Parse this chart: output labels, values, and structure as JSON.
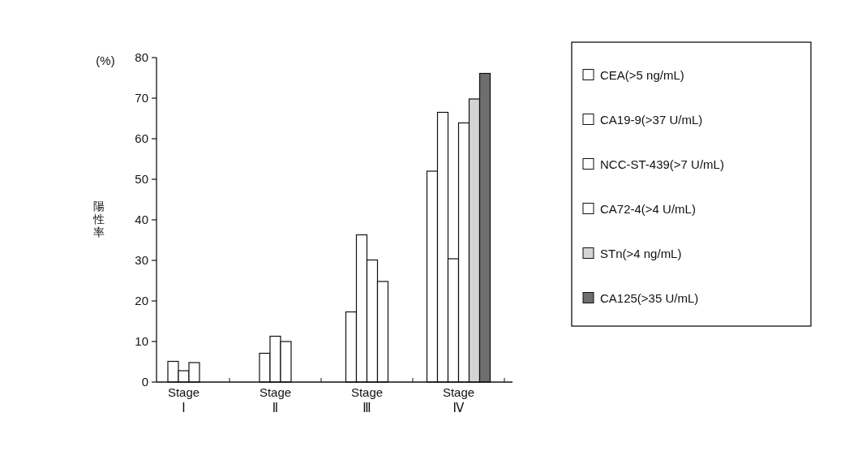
{
  "chart_data": {
    "type": "bar",
    "ylabel": "陽性率",
    "annotations": [
      "(%)"
    ],
    "categories": [
      "Stage\nⅠ",
      "Stage\nⅡ",
      "Stage\nⅢ",
      "Stage\nⅣ"
    ],
    "ylim": [
      0,
      80
    ],
    "yticks": [
      0,
      10,
      20,
      30,
      40,
      50,
      60,
      70,
      80
    ],
    "legend": "right",
    "grid": false,
    "series": [
      {
        "name": "CEA(>5 ng/mL)",
        "color": "#ffffff",
        "values": [
          5.1,
          7.1,
          17.3,
          52
        ]
      },
      {
        "name": "CA19-9(>37 U/mL)",
        "color": "#ffffff",
        "values": [
          2.8,
          11.3,
          36.3,
          66.5
        ]
      },
      {
        "name": "NCC-ST-439(>7 U/mL)",
        "color": "#ffffff",
        "values": [
          4.8,
          10.0,
          30.1,
          30.4
        ]
      },
      {
        "name": "CA72-4(>4 U/mL)",
        "color": "#ffffff",
        "values": [
          null,
          null,
          24.8,
          63.9
        ]
      },
      {
        "name": "STn(>4 ng/mL)",
        "color": "#d4d4d4",
        "values": [
          null,
          null,
          null,
          69.8
        ]
      },
      {
        "name": "CA125(>35 U/mL)",
        "color": "#6e6e6e",
        "values": [
          null,
          null,
          null,
          76.1
        ]
      }
    ]
  }
}
